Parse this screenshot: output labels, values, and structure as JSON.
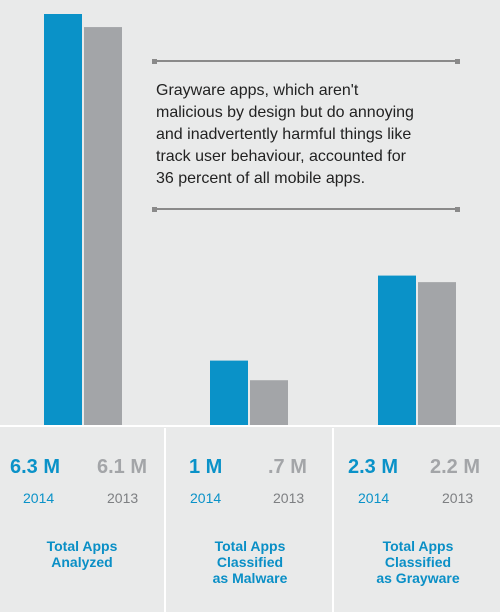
{
  "callout": {
    "text": "Grayware apps, which aren't\nmalicious by design but do annoying\nand inadvertently harmful things like\ntrack user behaviour, accounted for\n36 percent of all mobile apps."
  },
  "colors": {
    "year_2014": "#0a92c8",
    "year_2013": "#a3a5a8",
    "background": "#e9eaea"
  },
  "chart_data": {
    "type": "bar",
    "categories": [
      "Total Apps\nAnalyzed",
      "Total Apps\nClassified\nas Malware",
      "Total Apps\nClassified\nas Grayware"
    ],
    "series": [
      {
        "name": "2014",
        "values": [
          6.3,
          1,
          2.3
        ],
        "labels": [
          "6.3 M",
          "1 M",
          "2.3 M"
        ]
      },
      {
        "name": "2013",
        "values": [
          6.1,
          0.7,
          2.2
        ],
        "labels": [
          "6.1 M",
          ".7 M",
          "2.2 M"
        ]
      }
    ],
    "unit": "M",
    "ylim": [
      0,
      6.3
    ],
    "grid": false,
    "legend": "none"
  }
}
